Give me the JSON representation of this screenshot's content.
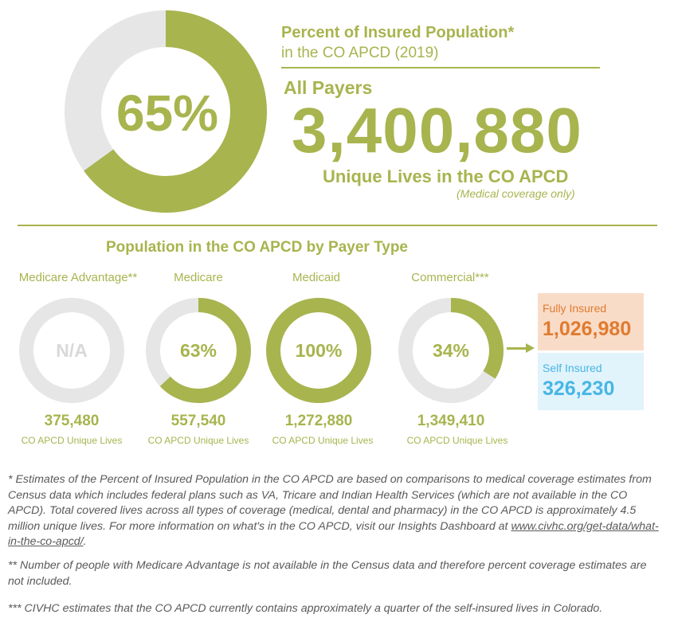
{
  "colors": {
    "accent": "#a8b44e",
    "track": "#e6e6e6",
    "na_text": "#d9d9d9",
    "fully_insured_bg": "#f9dcc8",
    "fully_insured_text": "#e07b2f",
    "self_insured_bg": "#e1f3fb",
    "self_insured_text": "#46b6e6",
    "footnote_text": "#595959"
  },
  "header": {
    "title_line1": "Percent of Insured Population*",
    "title_line2": "in the CO APCD (2019)",
    "all_payers": "All Payers",
    "big_number": "3,400,880",
    "unique_lives": "Unique Lives in the CO APCD",
    "coverage_note": "(Medical coverage only)"
  },
  "main_donut": {
    "label": "65%",
    "percent": 65
  },
  "section_title": "Population in the CO APCD by Payer Type",
  "payers": [
    {
      "label": "Medicare Advantage**",
      "pct_label": "N/A",
      "percent": null,
      "count": "375,480",
      "sub": "CO APCD Unique Lives"
    },
    {
      "label": "Medicare",
      "pct_label": "63%",
      "percent": 63,
      "count": "557,540",
      "sub": "CO APCD Unique Lives"
    },
    {
      "label": "Medicaid",
      "pct_label": "100%",
      "percent": 100,
      "count": "1,272,880",
      "sub": "CO APCD Unique Lives"
    },
    {
      "label": "Commercial***",
      "pct_label": "34%",
      "percent": 34,
      "count": "1,349,410",
      "sub": "CO APCD Unique Lives"
    }
  ],
  "commercial_breakdown": {
    "fully_insured": {
      "label": "Fully Insured",
      "value": "1,026,980"
    },
    "self_insured": {
      "label": "Self Insured",
      "value": "326,230"
    }
  },
  "footnotes": {
    "fn1_before": "* Estimates of the Percent of Insured Population in the CO APCD are based on comparisons to medical coverage estimates from Census data which includes federal plans such as VA, Tricare and Indian Health Services (which are not available in the CO APCD). Total covered lives across all types of coverage (medical, dental and pharmacy) in the CO APCD is approximately 4.5 million unique lives. For more information on what's in the CO APCD, visit our Insights Dashboard at ",
    "fn1_link": "www.civhc.org/get-data/what-in-the-co-apcd/",
    "fn1_after": ".",
    "fn2": "** Number of people with Medicare Advantage is not available in the Census data and therefore percent coverage estimates are not included.",
    "fn3": "*** CIVHC estimates that the CO APCD currently contains approximately a quarter of the self-insured lives in Colorado."
  },
  "chart_data": [
    {
      "type": "pie",
      "title": "Percent of Insured Population* in the CO APCD (2019)",
      "categories": [
        "All Payers"
      ],
      "values": [
        65
      ],
      "unit": "%"
    },
    {
      "type": "pie",
      "title": "Population in the CO APCD by Payer Type",
      "categories": [
        "Medicare Advantage**",
        "Medicare",
        "Medicaid",
        "Commercial***"
      ],
      "values": [
        null,
        63,
        100,
        34
      ],
      "unique_lives": [
        375480,
        557540,
        1272880,
        1349410
      ],
      "unit": "%"
    }
  ]
}
